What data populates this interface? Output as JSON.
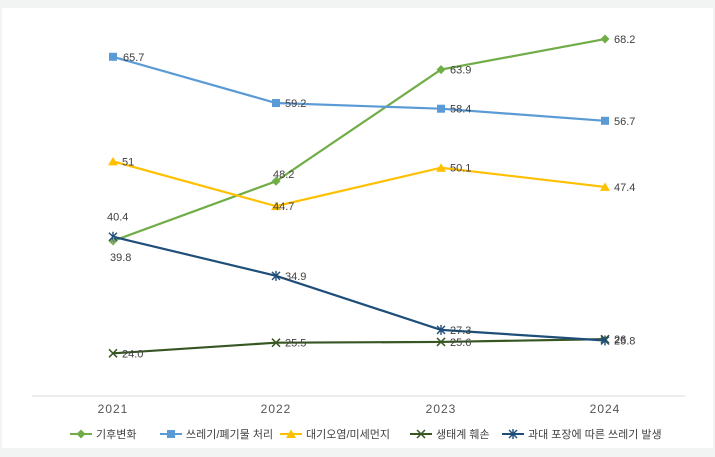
{
  "chart_data": {
    "type": "line",
    "categories": [
      "2021",
      "2022",
      "2023",
      "2024"
    ],
    "series": [
      {
        "name": "기후변화",
        "values": [
          39.8,
          48.2,
          63.9,
          68.2
        ],
        "color": "#70ad47",
        "marker": "diamond",
        "value_labels": [
          "39.8",
          "48.2",
          "63.9",
          "68.2"
        ]
      },
      {
        "name": "쓰레기/폐기물 처리",
        "values": [
          65.7,
          59.2,
          58.4,
          56.7
        ],
        "color": "#5b9bd5",
        "marker": "square",
        "value_labels": [
          "65.7",
          "59.2",
          "58.4",
          "56.7"
        ]
      },
      {
        "name": "대기오염/미세먼지",
        "values": [
          51,
          44.7,
          50.1,
          47.4
        ],
        "color": "#ffc000",
        "marker": "triangle",
        "value_labels": [
          "51",
          "44.7",
          "50.1",
          "47.4"
        ]
      },
      {
        "name": "생태계 훼손",
        "values": [
          24.0,
          25.5,
          25.6,
          26
        ],
        "color": "#375623",
        "marker": "x",
        "value_labels": [
          "24.0",
          "25.5",
          "25.6",
          "26"
        ]
      },
      {
        "name": "과대 포장에 따른 쓰레기 발생",
        "values": [
          40.4,
          34.9,
          27.3,
          25.8
        ],
        "color": "#1f4e79",
        "marker": "star",
        "value_labels": [
          "40.4",
          "34.9",
          "27.3",
          "25.8"
        ]
      }
    ],
    "ylim": [
      18,
      72
    ],
    "grid": false,
    "legend_position": "bottom",
    "title": "",
    "xlabel": "",
    "ylabel": ""
  }
}
